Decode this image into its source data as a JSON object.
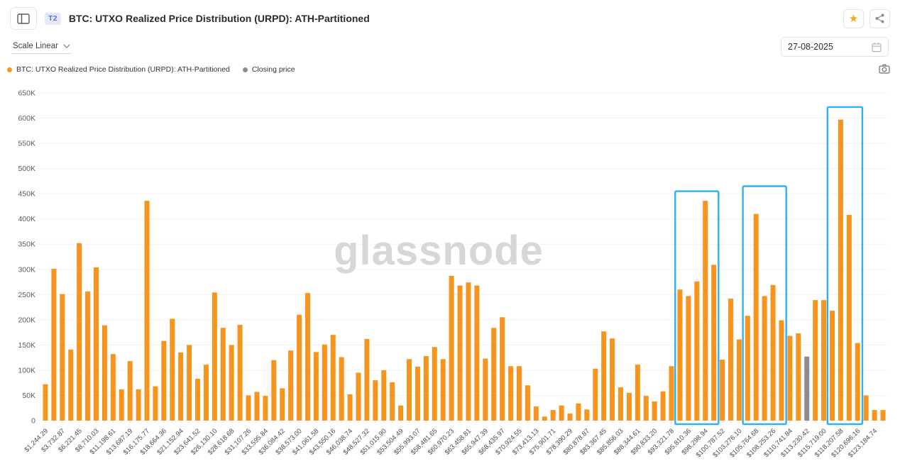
{
  "header": {
    "badge": "T2",
    "title": "BTC: UTXO Realized Price Distribution (URPD): ATH-Partitioned"
  },
  "controls": {
    "scale_label": "Scale Linear",
    "date_value": "27-08-2025"
  },
  "legend": [
    {
      "label": "BTC: UTXO Realized Price Distribution (URPD): ATH-Partitioned",
      "color": "#F7941E"
    },
    {
      "label": "Closing price",
      "color": "#8C8C8C"
    }
  ],
  "colors": {
    "bar": "#F7941E",
    "closing_price": "#8C8C8C",
    "highlight": "#2EB1F2",
    "grid": "#F2F2F2",
    "watermark": "#D7D7D7",
    "axis_text": "#5C5C5C",
    "favorite_active": "#F6A81F"
  },
  "chart_data": {
    "type": "bar",
    "title": "BTC: UTXO Realized Price Distribution (URPD): ATH-Partitioned",
    "watermark": "glassnode",
    "xlabel": "",
    "ylabel": "",
    "ylim": [
      0,
      650000
    ],
    "ytick_step": 50000,
    "ytick_labels": [
      "0",
      "50K",
      "100K",
      "150K",
      "200K",
      "250K",
      "300K",
      "350K",
      "400K",
      "450K",
      "500K",
      "550K",
      "600K",
      "650K"
    ],
    "x_labels": [
      "$1,244.29",
      "$3,732.87",
      "$6,221.45",
      "$8,710.03",
      "$11,198.61",
      "$13,687.19",
      "$16,175.77",
      "$18,664.36",
      "$21,152.94",
      "$23,641.52",
      "$26,130.10",
      "$28,618.68",
      "$31,107.26",
      "$33,595.84",
      "$36,084.42",
      "$38,573.00",
      "$41,061.58",
      "$43,550.16",
      "$46,038.74",
      "$48,527.32",
      "$51,015.90",
      "$53,504.49",
      "$55,993.07",
      "$58,481.65",
      "$60,970.23",
      "$63,458.81",
      "$65,947.39",
      "$68,435.97",
      "$70,924.55",
      "$73,413.13",
      "$75,901.71",
      "$78,390.29",
      "$80,878.87",
      "$83,367.45",
      "$85,856.03",
      "$88,344.61",
      "$90,833.20",
      "$93,321.78",
      "$95,810.36",
      "$98,298.94",
      "$100,787.52",
      "$103,276.10",
      "$105,764.68",
      "$108,253.26",
      "$110,741.84",
      "$113,230.42",
      "$115,719.00",
      "$118,207.58",
      "$120,696.16",
      "$123,184.74"
    ],
    "x_label_every_n_bars": 2,
    "values": [
      72000,
      301000,
      251000,
      141000,
      352000,
      256000,
      304000,
      189000,
      132000,
      62000,
      118000,
      62000,
      436000,
      68000,
      158000,
      202000,
      135000,
      150000,
      83000,
      111000,
      254000,
      184000,
      150000,
      190000,
      50000,
      57000,
      49000,
      120000,
      64000,
      139000,
      210000,
      253000,
      136000,
      151000,
      170000,
      126000,
      52000,
      95000,
      162000,
      80000,
      100000,
      76000,
      30000,
      122000,
      107000,
      128000,
      146000,
      122000,
      287000,
      268000,
      274000,
      268000,
      123000,
      184000,
      205000,
      108000,
      108000,
      70000,
      28000,
      8000,
      21000,
      30000,
      14000,
      34000,
      22000,
      103000,
      177000,
      163000,
      66000,
      55000,
      111000,
      49000,
      38000,
      58000,
      108000,
      260000,
      247000,
      276000,
      436000,
      309000,
      121000,
      242000,
      161000,
      208000,
      410000,
      247000,
      269000,
      199000,
      168000,
      173000,
      127000,
      239000,
      239000,
      218000,
      597000,
      408000,
      154000,
      50000,
      21000,
      21000
    ],
    "closing_price_bar_index": 90,
    "closing_price_x_label": "$113,230.42",
    "highlight_boxes": [
      {
        "start_bar": 75,
        "end_bar": 79,
        "top_value": 455000
      },
      {
        "start_bar": 83,
        "end_bar": 87,
        "top_value": 465000
      },
      {
        "start_bar": 93,
        "end_bar": 96,
        "top_value": 622000
      }
    ],
    "legend_position": "top-left",
    "grid": true
  }
}
